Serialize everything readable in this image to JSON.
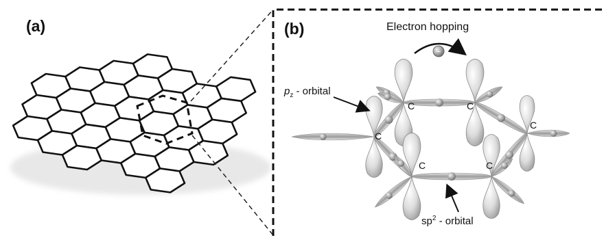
{
  "panels": {
    "a": {
      "label": "(a)"
    },
    "b": {
      "label": "(b)"
    }
  },
  "labels": {
    "electron_hopping": "Electron hopping",
    "pz_orbital_base": "p",
    "pz_orbital_sub": "z",
    "pz_orbital_rest": " - orbital",
    "sp2_orbital_base": "sp",
    "sp2_orbital_sup": "2",
    "sp2_orbital_rest": " - orbital",
    "electron_symbol": "−"
  },
  "atoms": [
    "C",
    "C",
    "C",
    "C",
    "C",
    "C"
  ],
  "colors": {
    "lattice_stroke": "#111111",
    "dash": "#222222",
    "orbital_fill": "#c9c9c9",
    "orbital_stroke": "#8a8a8a"
  }
}
